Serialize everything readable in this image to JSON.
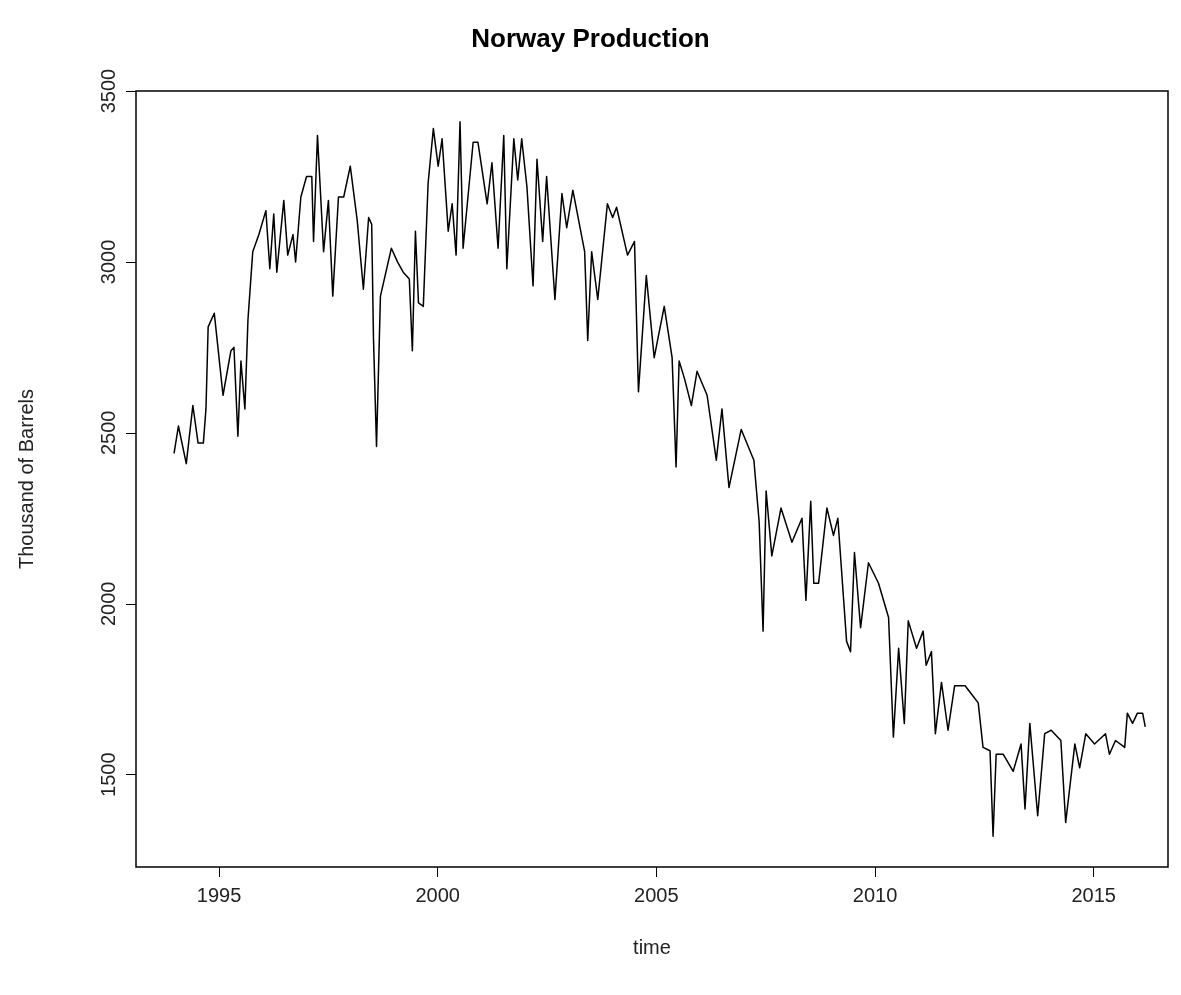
{
  "chart_data": {
    "type": "line",
    "title": "Norway Production",
    "xlabel": "time",
    "ylabel": "Thousand of Barrels",
    "xlim": [
      1993.1,
      2016.7
    ],
    "xticks": [
      1995,
      2000,
      2005,
      2010,
      2015
    ],
    "ylim": [
      1230,
      3500
    ],
    "yticks": [
      1500,
      2000,
      2500,
      3000,
      3500
    ],
    "marker": "none",
    "line_style": "solid",
    "series": [
      {
        "color": "#000000",
        "x": [
          1993.97,
          1994.07,
          1994.25,
          1994.4,
          1994.52,
          1994.64,
          1994.7,
          1994.75,
          1994.89,
          1995.09,
          1995.27,
          1995.34,
          1995.43,
          1995.5,
          1995.59,
          1995.66,
          1995.77,
          1995.91,
          1996.07,
          1996.16,
          1996.25,
          1996.32,
          1996.48,
          1996.57,
          1996.69,
          1996.75,
          1996.87,
          1997.0,
          1997.12,
          1997.16,
          1997.25,
          1997.39,
          1997.5,
          1997.6,
          1997.73,
          1997.85,
          1998.0,
          1998.16,
          1998.3,
          1998.42,
          1998.49,
          1998.53,
          1998.6,
          1998.69,
          1998.94,
          1999.08,
          1999.21,
          1999.35,
          1999.42,
          1999.49,
          1999.56,
          1999.67,
          1999.78,
          1999.9,
          2000.01,
          2000.1,
          2000.24,
          2000.33,
          2000.42,
          2000.51,
          2000.58,
          2000.81,
          2000.92,
          2001.13,
          2001.24,
          2001.38,
          2001.51,
          2001.58,
          2001.74,
          2001.83,
          2001.92,
          2002.04,
          2002.18,
          2002.27,
          2002.4,
          2002.49,
          2002.68,
          2002.84,
          2002.95,
          2003.09,
          2003.36,
          2003.43,
          2003.52,
          2003.66,
          2003.88,
          2004.0,
          2004.09,
          2004.34,
          2004.5,
          2004.59,
          2004.77,
          2004.95,
          2005.18,
          2005.36,
          2005.45,
          2005.52,
          2005.64,
          2005.8,
          2005.93,
          2006.16,
          2006.37,
          2006.5,
          2006.66,
          2006.94,
          2007.23,
          2007.35,
          2007.44,
          2007.51,
          2007.64,
          2007.85,
          2008.1,
          2008.33,
          2008.42,
          2008.53,
          2008.6,
          2008.71,
          2008.9,
          2009.05,
          2009.15,
          2009.35,
          2009.44,
          2009.53,
          2009.67,
          2009.85,
          2010.08,
          2010.31,
          2010.42,
          2010.54,
          2010.67,
          2010.76,
          2010.95,
          2011.1,
          2011.17,
          2011.29,
          2011.38,
          2011.52,
          2011.67,
          2011.82,
          2012.06,
          2012.24,
          2012.36,
          2012.47,
          2012.63,
          2012.7,
          2012.77,
          2012.93,
          2013.16,
          2013.34,
          2013.43,
          2013.54,
          2013.72,
          2013.88,
          2014.03,
          2014.25,
          2014.36,
          2014.57,
          2014.68,
          2014.82,
          2015.02,
          2015.27,
          2015.36,
          2015.5,
          2015.71,
          2015.77,
          2015.89,
          2016.0,
          2016.12,
          2016.18
        ],
        "values": [
          2440,
          2520,
          2410,
          2580,
          2470,
          2470,
          2570,
          2810,
          2850,
          2610,
          2740,
          2750,
          2490,
          2710,
          2570,
          2830,
          3030,
          3080,
          3150,
          2980,
          3140,
          2970,
          3180,
          3020,
          3080,
          3000,
          3190,
          3250,
          3250,
          3060,
          3370,
          3030,
          3180,
          2900,
          3190,
          3190,
          3280,
          3120,
          2920,
          3130,
          3110,
          2780,
          2460,
          2900,
          3040,
          3000,
          2970,
          2950,
          2740,
          3090,
          2880,
          2870,
          3230,
          3390,
          3280,
          3360,
          3090,
          3170,
          3020,
          3410,
          3040,
          3350,
          3350,
          3170,
          3290,
          3040,
          3370,
          2980,
          3360,
          3240,
          3360,
          3220,
          2930,
          3300,
          3060,
          3250,
          2890,
          3200,
          3100,
          3210,
          3030,
          2770,
          3030,
          2890,
          3170,
          3130,
          3160,
          3020,
          3060,
          2620,
          2960,
          2720,
          2870,
          2720,
          2400,
          2710,
          2660,
          2580,
          2680,
          2610,
          2420,
          2570,
          2340,
          2510,
          2420,
          2240,
          1920,
          2330,
          2140,
          2280,
          2180,
          2250,
          2010,
          2300,
          2060,
          2060,
          2280,
          2200,
          2250,
          1890,
          1860,
          2150,
          1930,
          2120,
          2060,
          1960,
          1610,
          1870,
          1650,
          1950,
          1870,
          1920,
          1820,
          1860,
          1620,
          1770,
          1630,
          1760,
          1760,
          1730,
          1710,
          1580,
          1570,
          1320,
          1560,
          1560,
          1510,
          1590,
          1400,
          1650,
          1380,
          1620,
          1630,
          1600,
          1360,
          1590,
          1520,
          1620,
          1590,
          1620,
          1560,
          1600,
          1580,
          1680,
          1650,
          1680,
          1680,
          1640
        ]
      }
    ]
  }
}
